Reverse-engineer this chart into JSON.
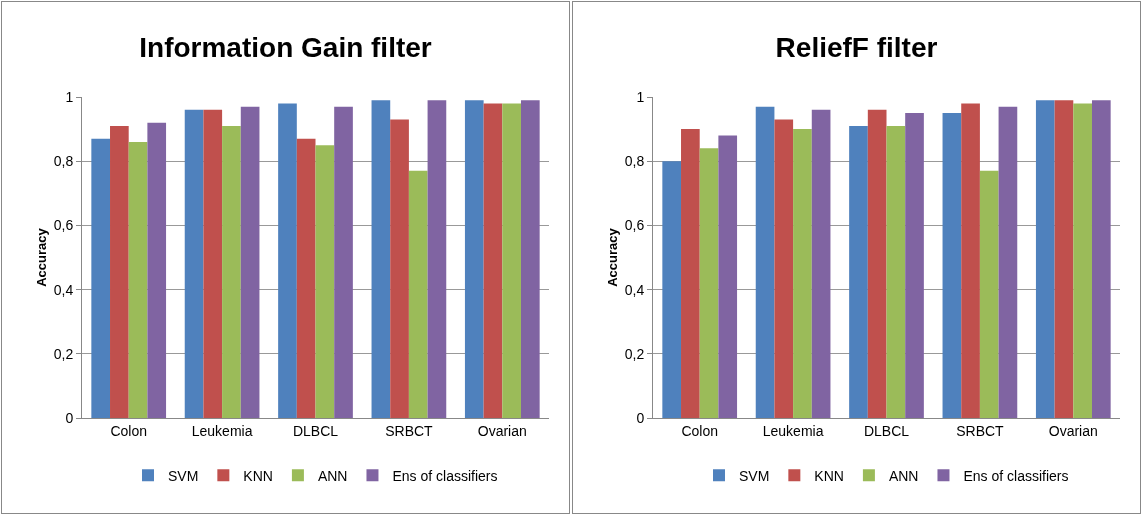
{
  "chart_data": [
    {
      "type": "bar",
      "title": "Information Gain filter",
      "ylabel": "Accuracy",
      "categories": [
        "Colon",
        "Leukemia",
        "DLBCL",
        "SRBCT",
        "Ovarian"
      ],
      "series": [
        {
          "name": "SVM",
          "color": "#4f81bd",
          "values": [
            0.87,
            0.96,
            0.98,
            0.99,
            0.99
          ]
        },
        {
          "name": "KNN",
          "color": "#c0504d",
          "values": [
            0.91,
            0.96,
            0.87,
            0.93,
            0.98
          ]
        },
        {
          "name": "ANN",
          "color": "#9bbb59",
          "values": [
            0.86,
            0.91,
            0.85,
            0.77,
            0.98
          ]
        },
        {
          "name": "Ens of classifiers",
          "color": "#8064a2",
          "values": [
            0.92,
            0.97,
            0.97,
            0.99,
            0.99
          ]
        }
      ],
      "ylim": [
        0,
        1
      ],
      "yticks": [
        {
          "value": 0,
          "label": "0"
        },
        {
          "value": 0.2,
          "label": "0,2"
        },
        {
          "value": 0.4,
          "label": "0,4"
        },
        {
          "value": 0.6,
          "label": "0,6"
        },
        {
          "value": 0.8,
          "label": "0,8"
        },
        {
          "value": 1,
          "label": "1"
        }
      ],
      "grid": "y",
      "legend": "bottom"
    },
    {
      "type": "bar",
      "title": "ReliefF filter",
      "ylabel": "Accuracy",
      "categories": [
        "Colon",
        "Leukemia",
        "DLBCL",
        "SRBCT",
        "Ovarian"
      ],
      "series": [
        {
          "name": "SVM",
          "color": "#4f81bd",
          "values": [
            0.8,
            0.97,
            0.91,
            0.95,
            0.99
          ]
        },
        {
          "name": "KNN",
          "color": "#c0504d",
          "values": [
            0.9,
            0.93,
            0.96,
            0.98,
            0.99
          ]
        },
        {
          "name": "ANN",
          "color": "#9bbb59",
          "values": [
            0.84,
            0.9,
            0.91,
            0.77,
            0.98
          ]
        },
        {
          "name": "Ens of classifiers",
          "color": "#8064a2",
          "values": [
            0.88,
            0.96,
            0.95,
            0.97,
            0.99
          ]
        }
      ],
      "ylim": [
        0,
        1
      ],
      "yticks": [
        {
          "value": 0,
          "label": "0"
        },
        {
          "value": 0.2,
          "label": "0,2"
        },
        {
          "value": 0.4,
          "label": "0,4"
        },
        {
          "value": 0.6,
          "label": "0,6"
        },
        {
          "value": 0.8,
          "label": "0,8"
        },
        {
          "value": 1,
          "label": "1"
        }
      ],
      "grid": "y",
      "legend": "bottom"
    }
  ]
}
